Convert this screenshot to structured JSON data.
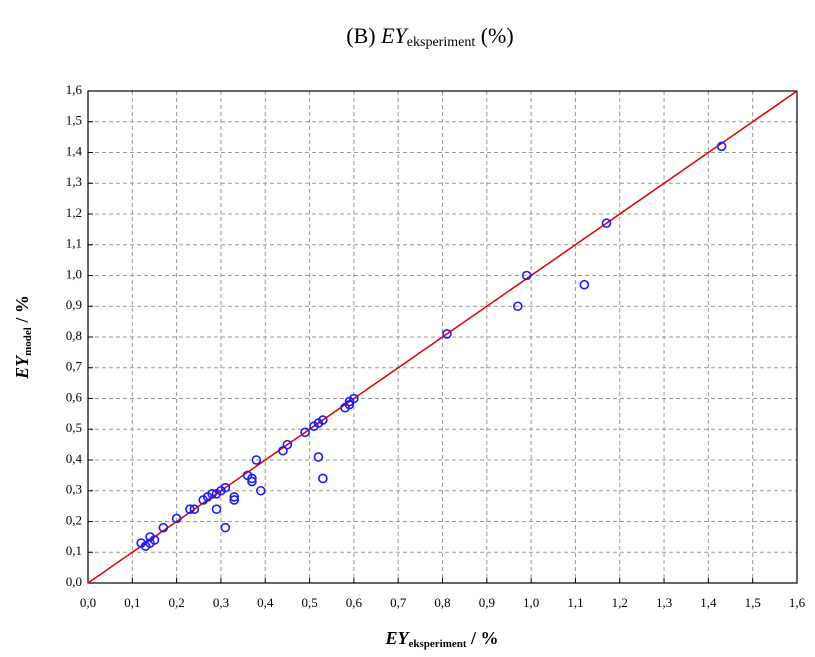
{
  "chart_data": {
    "type": "scatter",
    "title": {
      "prefix": "(B)",
      "main": "EY",
      "sub": "eksperiment",
      "suffix": "(%)"
    },
    "x_label": {
      "main": "EY",
      "sub": "eksperiment",
      "suffix": "/ %"
    },
    "y_label": {
      "main": "EY",
      "sub": "model",
      "suffix": "/ %"
    },
    "xlim": [
      0,
      1.6
    ],
    "ylim": [
      0,
      1.6
    ],
    "xticks": [
      {
        "value": 0,
        "label": "0,0"
      },
      {
        "value": 0.1,
        "label": "0,1"
      },
      {
        "value": 0.2,
        "label": "0,2"
      },
      {
        "value": 0.3,
        "label": "0,3"
      },
      {
        "value": 0.4,
        "label": "0,4"
      },
      {
        "value": 0.5,
        "label": "0,5"
      },
      {
        "value": 0.6,
        "label": "0,6"
      },
      {
        "value": 0.7,
        "label": "0,7"
      },
      {
        "value": 0.8,
        "label": "0,8"
      },
      {
        "value": 0.9,
        "label": "0,9"
      },
      {
        "value": 1.0,
        "label": "1,0"
      },
      {
        "value": 1.1,
        "label": "1,1"
      },
      {
        "value": 1.2,
        "label": "1,2"
      },
      {
        "value": 1.3,
        "label": "1,3"
      },
      {
        "value": 1.4,
        "label": "1,4"
      },
      {
        "value": 1.5,
        "label": "1,5"
      },
      {
        "value": 1.6,
        "label": "1,6"
      }
    ],
    "yticks": [
      {
        "value": 0,
        "label": "0,0"
      },
      {
        "value": 0.1,
        "label": "0,1"
      },
      {
        "value": 0.2,
        "label": "0,2"
      },
      {
        "value": 0.3,
        "label": "0,3"
      },
      {
        "value": 0.4,
        "label": "0,4"
      },
      {
        "value": 0.5,
        "label": "0,5"
      },
      {
        "value": 0.6,
        "label": "0,6"
      },
      {
        "value": 0.7,
        "label": "0,7"
      },
      {
        "value": 0.8,
        "label": "0,8"
      },
      {
        "value": 0.9,
        "label": "0,9"
      },
      {
        "value": 1.0,
        "label": "1,0"
      },
      {
        "value": 1.1,
        "label": "1,1"
      },
      {
        "value": 1.2,
        "label": "1,2"
      },
      {
        "value": 1.3,
        "label": "1,3"
      },
      {
        "value": 1.4,
        "label": "1,4"
      },
      {
        "value": 1.5,
        "label": "1,5"
      },
      {
        "value": 1.6,
        "label": "1,6"
      }
    ],
    "grid": true,
    "series": [
      {
        "color": "#1a1aff",
        "x": [
          0.12,
          0.13,
          0.14,
          0.14,
          0.15,
          0.17,
          0.2,
          0.23,
          0.24,
          0.26,
          0.27,
          0.28,
          0.29,
          0.29,
          0.3,
          0.31,
          0.31,
          0.33,
          0.33,
          0.36,
          0.37,
          0.37,
          0.38,
          0.39,
          0.44,
          0.45,
          0.49,
          0.51,
          0.52,
          0.52,
          0.53,
          0.53,
          0.58,
          0.59,
          0.59,
          0.6,
          0.81,
          0.97,
          0.99,
          1.12,
          1.17,
          1.43
        ],
        "values": [
          0.13,
          0.12,
          0.13,
          0.15,
          0.14,
          0.18,
          0.21,
          0.24,
          0.24,
          0.27,
          0.28,
          0.29,
          0.24,
          0.29,
          0.3,
          0.31,
          0.18,
          0.27,
          0.28,
          0.35,
          0.34,
          0.33,
          0.4,
          0.3,
          0.43,
          0.45,
          0.49,
          0.51,
          0.41,
          0.52,
          0.53,
          0.34,
          0.57,
          0.58,
          0.59,
          0.6,
          0.81,
          0.9,
          1.0,
          0.97,
          1.17,
          1.42
        ]
      }
    ],
    "line": {
      "color": "#e00000",
      "x": [
        0,
        1.6
      ],
      "y": [
        0,
        1.6
      ]
    }
  }
}
